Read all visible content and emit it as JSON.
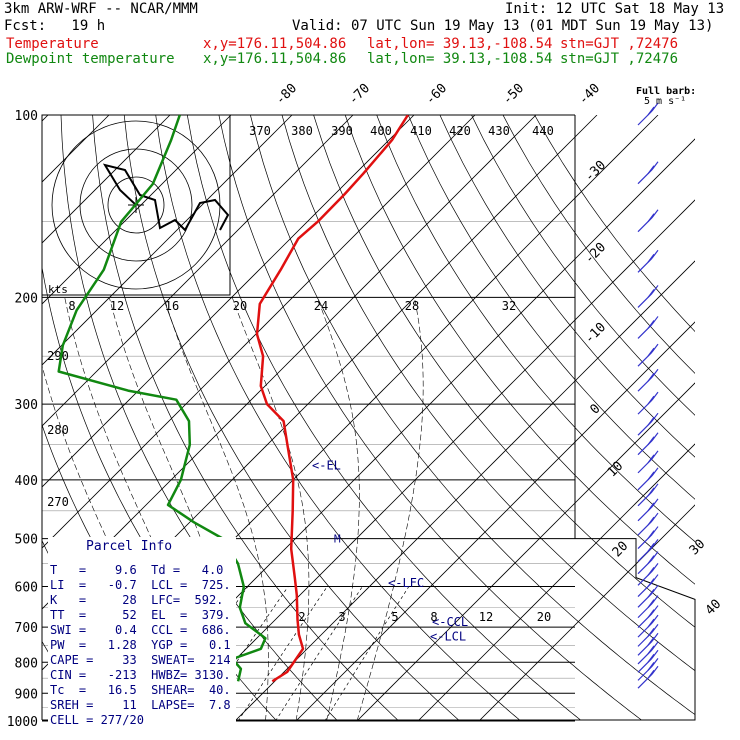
{
  "header": {
    "title": "3km ARW-WRF -- NCAR/MMM",
    "init": "Init: 12 UTC Sat 18 May 13",
    "fcst": "Fcst:   19 h",
    "valid": "Valid: 07 UTC Sun 19 May 13 (01 MDT Sun 19 May 13)",
    "temp_label": "Temperature",
    "dew_label": "Dewpoint temperature",
    "xy": "x,y=176.11,504.86",
    "latlon": "lat,lon= 39.13,-108.54",
    "stn": "stn=GJT ,72476"
  },
  "barb_title": "Full barb:",
  "barb_sub": "5 m s⁻¹",
  "hodo_units": "kts",
  "colors": {
    "temperature": "#e01010",
    "dewpoint": "#118811",
    "info": "#000080",
    "barbs": "#3333cc"
  },
  "parcel_info": {
    "title": "Parcel Info",
    "rows": [
      "T   =    9.6  Td =   4.0",
      "LI  =   -0.7  LCL =  725.",
      "K   =     28  LFC=  592.",
      "TT  =     52  EL  =  379.",
      "SWI =    0.4  CCL =  686.",
      "PW  =   1.28  YGP =   0.1",
      "CAPE =    33  SWEAT=  214",
      "CIN =   -213  HWBZ= 3130.",
      "Tc  =   16.5  SHEAR=  40.",
      "SREH =    11  LAPSE=  7.8",
      "CELL = 277/20"
    ]
  },
  "chart_data": {
    "type": "line",
    "title": "3km ARW-WRF -- NCAR/MMM",
    "xlabel": "",
    "ylabel": "",
    "y_scale": "log",
    "pressure_ticks": [
      "100",
      "200",
      "300",
      "400",
      "500",
      "600",
      "700",
      "800",
      "900",
      "1000"
    ],
    "isotherm_labels": [
      "-80",
      "-70",
      "-60",
      "-50",
      "-40",
      "-30",
      "-20",
      "-10",
      "0",
      "10",
      "20",
      "30",
      "40"
    ],
    "theta_labels": [
      "370",
      "380",
      "390",
      "400",
      "410",
      "420",
      "430",
      "440",
      "290",
      "280",
      "270"
    ],
    "mixing_ratio_labels": [
      "2",
      "3",
      "5",
      "8",
      "12",
      "20"
    ],
    "levels": [
      {
        "name": "EL",
        "label": "<-EL",
        "p": 379
      },
      {
        "name": "LFC",
        "label": "<-LFC",
        "p": 592
      },
      {
        "name": "CCL",
        "label": "<-CCL",
        "p": 686
      },
      {
        "name": "LCL",
        "label": "<-LCL",
        "p": 725
      }
    ],
    "parcel_marker": {
      "label": "M",
      "p": 500
    },
    "series": [
      {
        "name": "Temperature",
        "points": [
          [
            860,
            9.6
          ],
          [
            830,
            10.5
          ],
          [
            760,
            9.3
          ],
          [
            720,
            6.3
          ],
          [
            680,
            3.6
          ],
          [
            620,
            -0.5
          ],
          [
            580,
            -3.7
          ],
          [
            520,
            -9
          ],
          [
            450,
            -15
          ],
          [
            400,
            -20
          ],
          [
            350,
            -26.7
          ],
          [
            320,
            -31.2
          ],
          [
            300,
            -36.7
          ],
          [
            280,
            -40.7
          ],
          [
            250,
            -45.2
          ],
          [
            230,
            -49.8
          ],
          [
            205,
            -54.3
          ],
          [
            180,
            -56.5
          ],
          [
            160,
            -58.7
          ],
          [
            150,
            -58.3
          ],
          [
            135,
            -58.4
          ],
          [
            125,
            -58.7
          ],
          [
            110,
            -59.5
          ],
          [
            100,
            -61
          ]
        ]
      },
      {
        "name": "Dewpoint temperature",
        "points": [
          [
            860,
            4
          ],
          [
            820,
            2.4
          ],
          [
            790,
            -0.6
          ],
          [
            760,
            2.4
          ],
          [
            730,
            1.4
          ],
          [
            690,
            -4.3
          ],
          [
            650,
            -7.8
          ],
          [
            600,
            -10.6
          ],
          [
            550,
            -15.3
          ],
          [
            500,
            -21.9
          ],
          [
            470,
            -29.3
          ],
          [
            440,
            -36.4
          ],
          [
            400,
            -38.4
          ],
          [
            350,
            -42.7
          ],
          [
            320,
            -46.7
          ],
          [
            295,
            -52.3
          ],
          [
            285,
            -61.7
          ],
          [
            265,
            -76.2
          ],
          [
            240,
            -79.8
          ],
          [
            210,
            -83.3
          ],
          [
            180,
            -85.5
          ],
          [
            150,
            -90.5
          ],
          [
            130,
            -91.5
          ],
          [
            110,
            -95.7
          ],
          [
            100,
            -98.4
          ]
        ]
      }
    ],
    "wind_barbs_range_hpa": [
      100,
      850
    ]
  }
}
